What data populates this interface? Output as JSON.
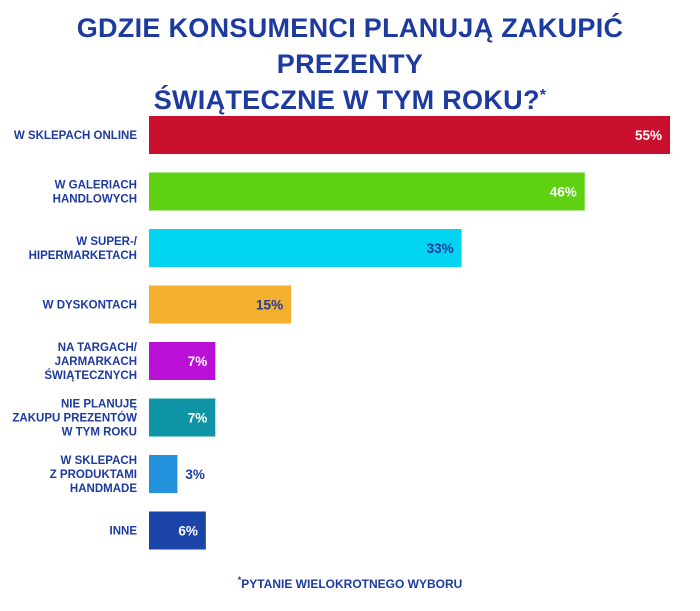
{
  "header": {
    "title_line1": "GDZIE KONSUMENCI PLANUJĄ ZAKUPIĆ PREZENTY",
    "title_line2": "ŚWIĄTECZNE W TYM ROKU?",
    "title_mark": "*"
  },
  "footnote": {
    "mark": "*",
    "text": "PYTANIE WIELOKROTNEGO WYBORU"
  },
  "chart_data": {
    "type": "bar",
    "orientation": "horizontal",
    "title": "GDZIE KONSUMENCI PLANUJĄ ZAKUPIĆ PREZENTY ŚWIĄTECZNE W TYM ROKU?*",
    "categories": [
      "W SKLEPACH ONLINE",
      "W GALERIACH HANDLOWYCH",
      "W SUPER-/ HIPERMARKETACH",
      "W DYSKONTACH",
      "NA TARGACH/ JARMARKACH ŚWIĄTECZNYCH",
      "NIE PLANUJĘ ZAKUPU PREZENTÓW W TYM ROKU",
      "W SKLEPACH Z PRODUKTAMI HANDMADE",
      "INNE"
    ],
    "category_lines": [
      [
        "W SKLEPACH ONLINE"
      ],
      [
        "W GALERIACH",
        "HANDLOWYCH"
      ],
      [
        "W SUPER-/",
        "HIPERMARKETACH"
      ],
      [
        "W DYSKONTACH"
      ],
      [
        "NA TARGACH/",
        "JARMARKACH",
        "ŚWIĄTECZNYCH"
      ],
      [
        "NIE PLANUJĘ",
        "ZAKUPU PREZENTÓW",
        "W TYM ROKU"
      ],
      [
        "W SKLEPACH",
        "Z PRODUKTAMI",
        "HANDMADE"
      ],
      [
        "INNE"
      ]
    ],
    "values": [
      55,
      46,
      33,
      15,
      7,
      7,
      3,
      6
    ],
    "value_labels": [
      "55%",
      "46%",
      "33%",
      "15%",
      "7%",
      "7%",
      "3%",
      "6%"
    ],
    "colors": [
      "#c8102e",
      "#5fd113",
      "#00d4f0",
      "#f3b02f",
      "#b90fd6",
      "#0e94a4",
      "#2391dc",
      "#1b44a8"
    ],
    "label_colors": [
      "#ffffff",
      "#ffffff",
      "#1d3a9e",
      "#1d3a9e",
      "#ffffff",
      "#ffffff",
      "#1d3a9e",
      "#ffffff"
    ],
    "label_inside": [
      true,
      true,
      true,
      true,
      true,
      true,
      false,
      true
    ],
    "xlim": [
      0,
      55
    ],
    "grid": false,
    "legend": "none",
    "xlabel": "",
    "ylabel": ""
  }
}
